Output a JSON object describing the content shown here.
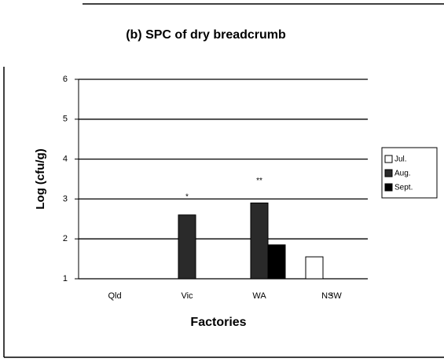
{
  "chart_data": {
    "type": "bar",
    "title": "(b) SPC of dry breadcrumb",
    "x_label": "Factories",
    "y_label": "Log (cfu/g)",
    "categories": [
      "Qld",
      "Vic",
      "WA",
      "NSW"
    ],
    "series": [
      {
        "name": "Jul.",
        "color": "#ffffff",
        "values": [
          null,
          null,
          null,
          1.55
        ]
      },
      {
        "name": "Aug.",
        "color": "#2a2a2a",
        "values": [
          null,
          2.6,
          2.9,
          null
        ]
      },
      {
        "name": "Sept.",
        "color": "#000000",
        "values": [
          null,
          null,
          1.85,
          null
        ]
      }
    ],
    "annotations": [
      {
        "text": "*",
        "x": "Vic",
        "y": 3.05
      },
      {
        "text": "**",
        "x": "WA",
        "y": 3.45
      },
      {
        "text": "*",
        "x": "NSW",
        "y": 0.55
      }
    ],
    "ylim": [
      1,
      6
    ],
    "yticks": [
      1,
      2,
      3,
      4,
      5,
      6
    ],
    "grid": true,
    "legend": "right"
  }
}
